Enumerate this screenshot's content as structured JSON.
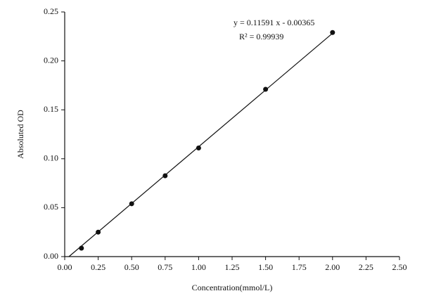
{
  "chart_data": {
    "type": "scatter",
    "x_label": "Concentration(mmol/L)",
    "y_label": "Absoluted OD",
    "annotations": [
      "y = 0.11591 x - 0.00365",
      "R² = 0.99939"
    ],
    "x": [
      0.125,
      0.25,
      0.5,
      0.75,
      1.0,
      1.5,
      2.0
    ],
    "values": [
      0.0086,
      0.025,
      0.054,
      0.0826,
      0.111,
      0.171,
      0.229
    ],
    "color": "#111111",
    "fit": {
      "x": [
        0.0315,
        2.0
      ],
      "values": [
        0,
        0.2282
      ],
      "color": "#111111"
    },
    "xlim": [
      0,
      2.5
    ],
    "xticks": [
      {
        "value": 0,
        "label": "0.00"
      },
      {
        "value": 0.25,
        "label": "0.25"
      },
      {
        "value": 0.5,
        "label": "0.50"
      },
      {
        "value": 0.75,
        "label": "0.75"
      },
      {
        "value": 1,
        "label": "1.00"
      },
      {
        "value": 1.25,
        "label": "1.25"
      },
      {
        "value": 1.5,
        "label": "1.50"
      },
      {
        "value": 1.75,
        "label": "1.75"
      },
      {
        "value": 2,
        "label": "2.00"
      },
      {
        "value": 2.25,
        "label": "2.25"
      },
      {
        "value": 2.5,
        "label": "2.50"
      }
    ],
    "ylim": [
      0,
      0.25
    ],
    "yticks": [
      {
        "value": 0,
        "label": "0.00"
      },
      {
        "value": 0.05,
        "label": "0.05"
      },
      {
        "value": 0.1,
        "label": "0.10"
      },
      {
        "value": 0.15,
        "label": "0.15"
      },
      {
        "value": 0.2,
        "label": "0.20"
      },
      {
        "value": 0.25,
        "label": "0.25"
      }
    ],
    "grid": false
  }
}
